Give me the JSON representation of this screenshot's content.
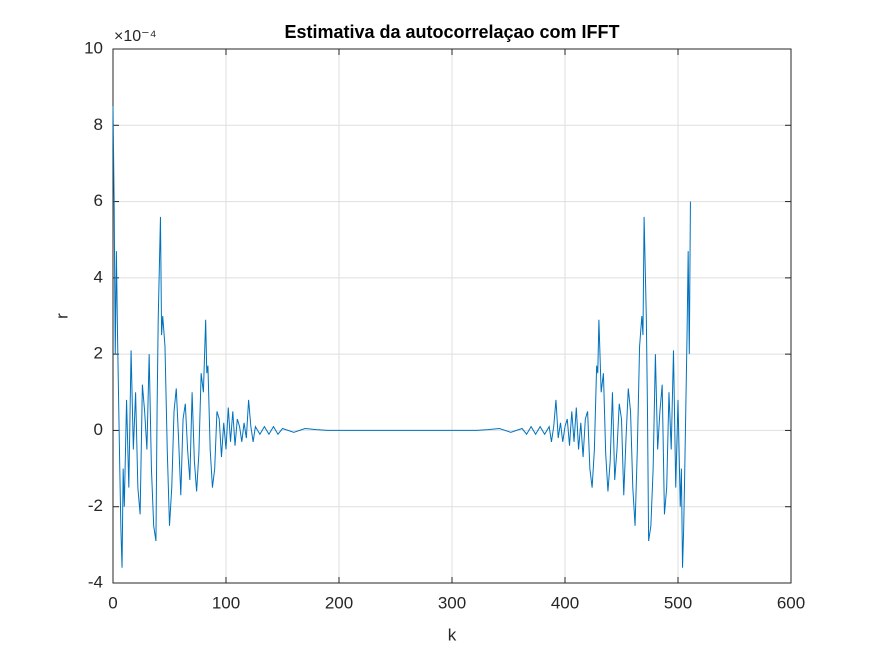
{
  "chart_data": {
    "type": "line",
    "title": "Estimativa da autocorrelaçao com IFFT",
    "x_label": "k",
    "y_label": "r",
    "y_multiplier_label": "×10⁻⁴",
    "xlim": [
      0,
      600
    ],
    "xticks": [
      0,
      100,
      200,
      300,
      400,
      500,
      600
    ],
    "ylim": [
      -4,
      10
    ],
    "yticks": [
      -4,
      -2,
      0,
      2,
      4,
      6,
      8,
      10
    ],
    "grid": true,
    "series": [
      {
        "color": "#0072bd",
        "x": [
          0,
          1,
          2,
          3,
          4,
          6,
          7,
          8,
          9,
          10,
          12,
          14,
          16,
          18,
          20,
          22,
          24,
          26,
          28,
          30,
          32,
          34,
          36,
          38,
          39,
          40,
          42,
          43,
          44,
          46,
          48,
          50,
          52,
          54,
          56,
          58,
          60,
          62,
          64,
          66,
          68,
          70,
          72,
          74,
          76,
          78,
          80,
          82,
          83,
          84,
          86,
          88,
          90,
          92,
          94,
          96,
          98,
          100,
          102,
          104,
          106,
          108,
          110,
          112,
          114,
          116,
          118,
          120,
          122,
          124,
          126,
          130,
          134,
          138,
          142,
          146,
          150,
          160,
          170,
          180,
          190,
          256,
          322,
          332,
          342,
          352,
          362,
          366,
          370,
          374,
          378,
          382,
          386,
          388,
          390,
          392,
          394,
          396,
          398,
          400,
          402,
          404,
          406,
          408,
          410,
          412,
          414,
          416,
          418,
          420,
          422,
          424,
          426,
          428,
          429,
          430,
          432,
          434,
          436,
          438,
          440,
          442,
          444,
          446,
          448,
          450,
          452,
          454,
          456,
          458,
          460,
          462,
          464,
          466,
          468,
          469,
          470,
          472,
          473,
          474,
          476,
          478,
          480,
          482,
          484,
          486,
          488,
          490,
          492,
          494,
          496,
          498,
          500,
          502,
          503,
          504,
          505,
          506,
          508,
          509,
          510,
          511
        ],
        "values": [
          8.5,
          6,
          2,
          4.7,
          2.5,
          -1,
          -2.6,
          -3.6,
          -1,
          -2,
          0.8,
          -1.5,
          2.1,
          -0.5,
          1,
          -1.5,
          -2.2,
          1.2,
          0.5,
          -0.5,
          2,
          -1,
          -2.5,
          -2.9,
          0.5,
          2.9,
          5.6,
          2.5,
          3,
          2.2,
          -0.5,
          -2.5,
          -1.5,
          0.5,
          1.1,
          -0.2,
          -1.7,
          0.3,
          0.7,
          -0.5,
          -1.3,
          1,
          -0.8,
          -1.6,
          -0.6,
          1.5,
          1,
          2.9,
          1.5,
          1.7,
          -0.5,
          -1.5,
          -1,
          0.5,
          0.3,
          -0.7,
          0.2,
          -0.5,
          0.6,
          -0.3,
          0.5,
          -0.4,
          0.3,
          0.1,
          -0.3,
          0.2,
          -0.2,
          0.8,
          0.1,
          -0.3,
          0.1,
          -0.1,
          0.1,
          -0.1,
          0.1,
          -0.1,
          0.05,
          -0.05,
          0.05,
          0.02,
          0,
          0,
          0,
          0.02,
          0.05,
          -0.05,
          0.05,
          -0.1,
          0.1,
          -0.1,
          0.1,
          -0.1,
          0.1,
          -0.3,
          0.1,
          0.8,
          -0.2,
          0.2,
          -0.3,
          0.1,
          0.3,
          -0.4,
          0.5,
          -0.3,
          0.6,
          -0.5,
          0.2,
          -0.7,
          0.3,
          0.5,
          -1,
          -1.5,
          -0.5,
          1.7,
          1.5,
          2.9,
          1,
          1.5,
          -0.6,
          -1.6,
          -0.8,
          1,
          -1.3,
          -0.5,
          0.7,
          0.3,
          -1.7,
          -0.2,
          1.1,
          0.5,
          -1.5,
          -2.5,
          -0.5,
          2.2,
          3,
          2.5,
          5.6,
          2.9,
          0.5,
          -2.9,
          -2.5,
          -1,
          2,
          -0.5,
          0.5,
          1.2,
          -2.2,
          -1.5,
          1,
          -0.5,
          2.1,
          -1.5,
          0.8,
          -2,
          -1,
          -3.6,
          -2.6,
          -1,
          2.5,
          4.7,
          2,
          6
        ]
      }
    ]
  }
}
